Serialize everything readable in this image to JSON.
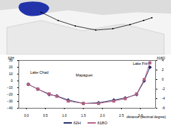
{
  "chart_data": {
    "type": "line",
    "x_label": "distance (decimal degree)",
    "y_label": "δ2H",
    "y2_label": "δ18O",
    "xlim": [
      -0.2,
      3.4
    ],
    "xticks": [
      0,
      0.5,
      1,
      1.5,
      2,
      2.5,
      3
    ],
    "ylim": [
      -40,
      30
    ],
    "yticks": [
      -40,
      -30,
      -20,
      -10,
      0,
      10,
      20,
      30
    ],
    "y2lim": [
      -6,
      4
    ],
    "y2ticks": [
      -6,
      -4,
      -2,
      0,
      2,
      4
    ],
    "legend": "bottom",
    "series": [
      {
        "name": "δ2H",
        "color": "#1f2a6b",
        "marker": "diamond",
        "x": [
          0.05,
          0.3,
          0.6,
          0.8,
          1.1,
          1.5,
          1.9,
          2.3,
          2.6,
          2.9,
          3.1,
          3.25
        ],
        "values": [
          -5,
          -12,
          -20,
          -22,
          -28,
          -33,
          -32,
          -28,
          -25,
          -20,
          0,
          20
        ]
      },
      {
        "name": "δ18O",
        "color": "#b06080",
        "marker": "square",
        "axis": "y2",
        "x": [
          0.05,
          0.3,
          0.6,
          0.8,
          1.1,
          1.5,
          1.9,
          2.3,
          2.6,
          2.9,
          3.1,
          3.25
        ],
        "values": [
          -1,
          -2,
          -3,
          -3.5,
          -4.5,
          -5,
          -5,
          -4.5,
          -4,
          -3,
          0,
          3.5
        ]
      }
    ],
    "annotations": [
      {
        "text": "Lake Chad",
        "x": 0.1,
        "y": 12
      },
      {
        "text": "Mapaguet",
        "x": 1.3,
        "y": 8
      },
      {
        "text": "Lake Fitri",
        "x": 2.8,
        "y": 25
      }
    ]
  }
}
